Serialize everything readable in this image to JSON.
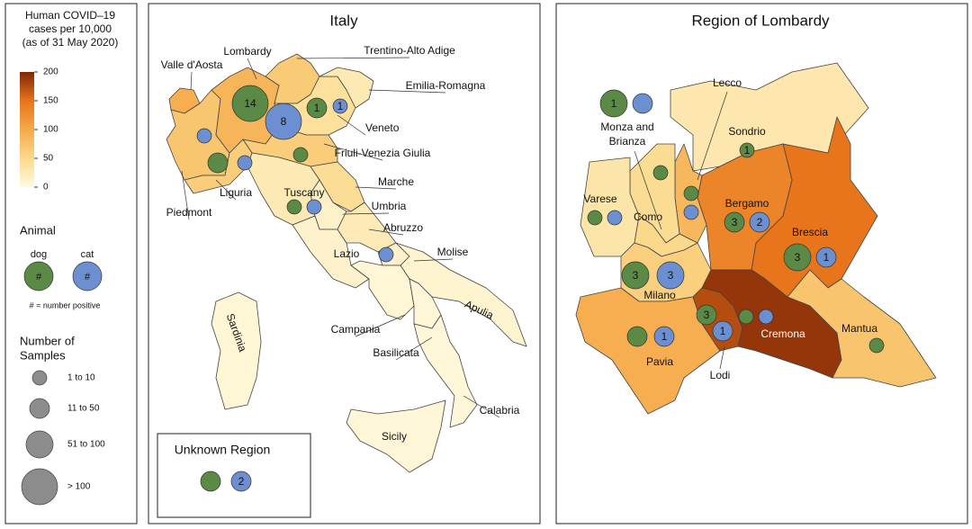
{
  "legend": {
    "colorbar": {
      "title_lines": [
        "Human COVID–19",
        "cases per 10,000",
        "(as of 31 May 2020)"
      ],
      "lim": [
        0,
        200
      ],
      "ticks": [
        0,
        50,
        100,
        150,
        200
      ],
      "colors": [
        "#fffbe3",
        "#fbd98a",
        "#f5a94a",
        "#e8741c",
        "#7f2704"
      ]
    },
    "animal": {
      "title": "Animal",
      "symbol": "#",
      "note": "# = number positive",
      "items": [
        {
          "label": "dog",
          "color": "#5b8a47"
        },
        {
          "label": "cat",
          "color": "#6b8fd1"
        }
      ]
    },
    "samples": {
      "title_lines": [
        "Number of",
        "Samples"
      ],
      "sizes": [
        "1 to 10",
        "11 to 50",
        "51 to 100",
        "> 100"
      ]
    }
  },
  "italy": {
    "title": "Italy",
    "regions": [
      {
        "name": "Valle d'Aosta",
        "cases": 95
      },
      {
        "name": "Piedmont",
        "cases": 70
      },
      {
        "name": "Lombardy",
        "cases": 88
      },
      {
        "name": "Trentino-Alto Adige",
        "cases": 65
      },
      {
        "name": "Veneto",
        "cases": 40
      },
      {
        "name": "Friuli-Venezia Giulia",
        "cases": 27
      },
      {
        "name": "Emilia-Romagna",
        "cases": 62
      },
      {
        "name": "Liguria",
        "cases": 62
      },
      {
        "name": "Tuscany",
        "cases": 27
      },
      {
        "name": "Marche",
        "cases": 44
      },
      {
        "name": "Umbria",
        "cases": 16
      },
      {
        "name": "Lazio",
        "cases": 13
      },
      {
        "name": "Abruzzo",
        "cases": 25
      },
      {
        "name": "Molise",
        "cases": 14
      },
      {
        "name": "Campania",
        "cases": 8
      },
      {
        "name": "Apulia",
        "cases": 11
      },
      {
        "name": "Basilicata",
        "cases": 7
      },
      {
        "name": "Calabria",
        "cases": 6
      },
      {
        "name": "Sicily",
        "cases": 7
      },
      {
        "name": "Sardinia",
        "cases": 8
      }
    ],
    "markers": [
      {
        "animal": 0,
        "size_class": 3,
        "count": 14
      },
      {
        "animal": 1,
        "size_class": 3,
        "count": 8
      },
      {
        "animal": 0,
        "size_class": 1,
        "count": 1
      },
      {
        "animal": 1,
        "size_class": 0,
        "count": 1
      },
      {
        "animal": 1,
        "size_class": 0,
        "count": null
      },
      {
        "animal": 0,
        "size_class": 1,
        "count": null
      },
      {
        "animal": 1,
        "size_class": 0,
        "count": null
      },
      {
        "animal": 0,
        "size_class": 0,
        "count": null
      },
      {
        "animal": 0,
        "size_class": 0,
        "count": null
      },
      {
        "animal": 1,
        "size_class": 0,
        "count": null
      },
      {
        "animal": 1,
        "size_class": 0,
        "count": null
      }
    ]
  },
  "unknown": {
    "title": "Unknown Region",
    "markers": [
      {
        "animal": 0,
        "size_class": 1,
        "count": null
      },
      {
        "animal": 1,
        "size_class": 1,
        "count": 2
      }
    ]
  },
  "lombardy": {
    "title": "Region of Lombardy",
    "provinces": [
      {
        "name_lines": [
          "Sondrio"
        ],
        "cases": 30
      },
      {
        "name_lines": [
          "Brescia"
        ],
        "cases": 150
      },
      {
        "name_lines": [
          "Bergamo"
        ],
        "cases": 135
      },
      {
        "name_lines": [
          "Lecco"
        ],
        "cases": 85
      },
      {
        "name_lines": [
          "Como"
        ],
        "cases": 45
      },
      {
        "name_lines": [
          "Varese"
        ],
        "cases": 33
      },
      {
        "name_lines": [
          "Monza and",
          "Brianza"
        ],
        "cases": 50
      },
      {
        "name_lines": [
          "Milano"
        ],
        "cases": 60
      },
      {
        "name_lines": [
          "Pavia"
        ],
        "cases": 95
      },
      {
        "name_lines": [
          "Lodi"
        ],
        "cases": 175
      },
      {
        "name_lines": [
          "Cremona"
        ],
        "cases": 190
      },
      {
        "name_lines": [
          "Mantua"
        ],
        "cases": 72
      }
    ],
    "markers": [
      {
        "animal": 0,
        "size_class": 2,
        "count": 1
      },
      {
        "animal": 1,
        "size_class": 1,
        "count": null
      },
      {
        "animal": 0,
        "size_class": 0,
        "count": 1
      },
      {
        "animal": 0,
        "size_class": 0,
        "count": null
      },
      {
        "animal": 1,
        "size_class": 0,
        "count": null
      },
      {
        "animal": 0,
        "size_class": 0,
        "count": null
      },
      {
        "animal": 0,
        "size_class": 0,
        "count": null
      },
      {
        "animal": 1,
        "size_class": 0,
        "count": null
      },
      {
        "animal": 0,
        "size_class": 1,
        "count": 3
      },
      {
        "animal": 1,
        "size_class": 1,
        "count": 2
      },
      {
        "animal": 0,
        "size_class": 2,
        "count": 3
      },
      {
        "animal": 1,
        "size_class": 1,
        "count": 1
      },
      {
        "animal": 0,
        "size_class": 2,
        "count": 3
      },
      {
        "animal": 1,
        "size_class": 2,
        "count": 3
      },
      {
        "animal": 0,
        "size_class": 1,
        "count": null
      },
      {
        "animal": 1,
        "size_class": 1,
        "count": 1
      },
      {
        "animal": 0,
        "size_class": 1,
        "count": 3
      },
      {
        "animal": 1,
        "size_class": 1,
        "count": 1
      },
      {
        "animal": 0,
        "size_class": 0,
        "count": null
      },
      {
        "animal": 1,
        "size_class": 0,
        "count": null
      },
      {
        "animal": 0,
        "size_class": 0,
        "count": null
      }
    ]
  }
}
